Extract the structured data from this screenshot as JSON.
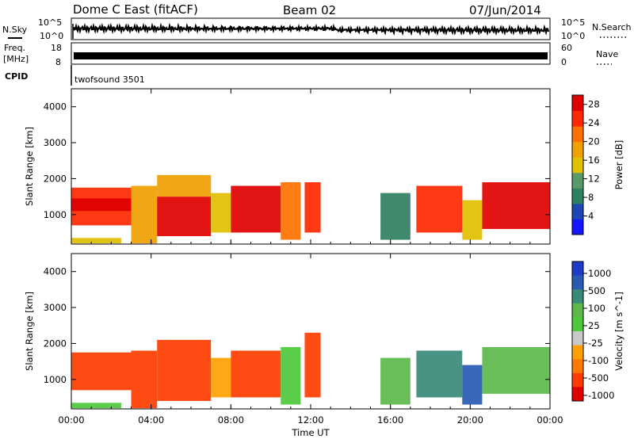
{
  "header": {
    "station": "Dome C East (fitACF)",
    "beam": "Beam 02",
    "date": "07/Jun/2014"
  },
  "status_panels": {
    "nsky_label": "N.Sky",
    "nsky_ticks": [
      "10^5",
      "10^0"
    ],
    "nsearch_label": "N.Search",
    "freq_label": "Freq.",
    "freq_unit": "[MHz]",
    "freq_ticks": [
      "18",
      "8"
    ],
    "nave_label": "Nave",
    "nave_ticks": [
      "60",
      "0"
    ],
    "cpid_label": "CPID",
    "cpid_value": "twofsound 3501"
  },
  "colors": {
    "power_scale": [
      "#1414ff",
      "#1e46b4",
      "#2f8060",
      "#5a9a68",
      "#e0c000",
      "#f0a000",
      "#ff7000",
      "#ff2800",
      "#e00000"
    ],
    "velocity_scale": [
      "#1e3cc8",
      "#2a5ab4",
      "#3a8a7a",
      "#5cb84c",
      "#4ec83c",
      "#c8c8c8",
      "#ffa000",
      "#ff7800",
      "#ff3c00",
      "#e00000"
    ]
  },
  "chart_data": [
    {
      "type": "heatmap",
      "name": "power-panel",
      "ylabel": "Slant Range [km]",
      "xlabel": "",
      "ylim": [
        180,
        4500
      ],
      "xlim": [
        0,
        24
      ],
      "y_ticks": [
        1000,
        2000,
        3000,
        4000
      ],
      "x_ticks": [
        0,
        4,
        8,
        12,
        16,
        20,
        24
      ],
      "colorbar": {
        "label": "Power [dB]",
        "ticks": [
          "4",
          "8",
          "12",
          "16",
          "20",
          "24",
          "28"
        ],
        "range": [
          0,
          30
        ]
      },
      "cells": [
        {
          "t0": 0.0,
          "t1": 3.0,
          "r0": 700,
          "r1": 1750,
          "v": 24
        },
        {
          "t0": 0.0,
          "t1": 3.0,
          "r0": 1100,
          "r1": 1450,
          "v": 29
        },
        {
          "t0": 0.0,
          "t1": 2.5,
          "r0": 200,
          "r1": 350,
          "v": 14
        },
        {
          "t0": 3.0,
          "t1": 4.3,
          "r0": 200,
          "r1": 1800,
          "v": 18
        },
        {
          "t0": 4.3,
          "t1": 7.0,
          "r0": 400,
          "r1": 1500,
          "v": 27
        },
        {
          "t0": 4.3,
          "t1": 7.0,
          "r0": 1500,
          "r1": 2100,
          "v": 19
        },
        {
          "t0": 7.0,
          "t1": 8.0,
          "r0": 500,
          "r1": 1600,
          "v": 15
        },
        {
          "t0": 8.0,
          "t1": 10.5,
          "r0": 500,
          "r1": 1800,
          "v": 28
        },
        {
          "t0": 10.5,
          "t1": 11.5,
          "r0": 300,
          "r1": 1900,
          "v": 21
        },
        {
          "t0": 11.7,
          "t1": 12.5,
          "r0": 500,
          "r1": 1900,
          "v": 24
        },
        {
          "t0": 15.5,
          "t1": 17.0,
          "r0": 300,
          "r1": 1600,
          "v": 8
        },
        {
          "t0": 17.3,
          "t1": 19.6,
          "r0": 500,
          "r1": 1800,
          "v": 25
        },
        {
          "t0": 19.6,
          "t1": 20.6,
          "r0": 300,
          "r1": 1400,
          "v": 14
        },
        {
          "t0": 20.6,
          "t1": 24.0,
          "r0": 600,
          "r1": 1900,
          "v": 27
        }
      ]
    },
    {
      "type": "heatmap",
      "name": "velocity-panel",
      "ylabel": "Slant Range [km]",
      "xlabel": "Time UT",
      "ylim": [
        180,
        4500
      ],
      "xlim": [
        0,
        24
      ],
      "y_ticks": [
        1000,
        2000,
        3000,
        4000
      ],
      "x_ticks": [
        0,
        4,
        8,
        12,
        16,
        20,
        24
      ],
      "x_tick_labels": [
        "00:00",
        "04:00",
        "08:00",
        "12:00",
        "16:00",
        "20:00",
        "00:00"
      ],
      "colorbar": {
        "label": "Velocity [m s^-1]",
        "ticks": [
          "1000",
          "500",
          "100",
          "25",
          "-25",
          "-100",
          "-500",
          "-1000"
        ]
      },
      "cells": [
        {
          "t0": 0.0,
          "t1": 3.0,
          "r0": 700,
          "r1": 1750,
          "v": -120
        },
        {
          "t0": 0.0,
          "t1": 2.5,
          "r0": 200,
          "r1": 350,
          "v": 60
        },
        {
          "t0": 3.0,
          "t1": 4.3,
          "r0": 200,
          "r1": 1800,
          "v": -150
        },
        {
          "t0": 4.3,
          "t1": 7.0,
          "r0": 400,
          "r1": 2100,
          "v": -180
        },
        {
          "t0": 7.0,
          "t1": 8.0,
          "r0": 500,
          "r1": 1600,
          "v": 0
        },
        {
          "t0": 8.0,
          "t1": 10.5,
          "r0": 500,
          "r1": 1800,
          "v": -200
        },
        {
          "t0": 10.5,
          "t1": 11.5,
          "r0": 300,
          "r1": 1900,
          "v": 80
        },
        {
          "t0": 11.7,
          "t1": 12.5,
          "r0": 500,
          "r1": 2300,
          "v": -130
        },
        {
          "t0": 15.5,
          "t1": 17.0,
          "r0": 300,
          "r1": 1600,
          "v": 150
        },
        {
          "t0": 17.3,
          "t1": 19.6,
          "r0": 500,
          "r1": 1800,
          "v": 300
        },
        {
          "t0": 19.6,
          "t1": 20.6,
          "r0": 300,
          "r1": 1400,
          "v": 700
        },
        {
          "t0": 20.6,
          "t1": 24.0,
          "r0": 600,
          "r1": 1900,
          "v": 200
        }
      ]
    }
  ]
}
